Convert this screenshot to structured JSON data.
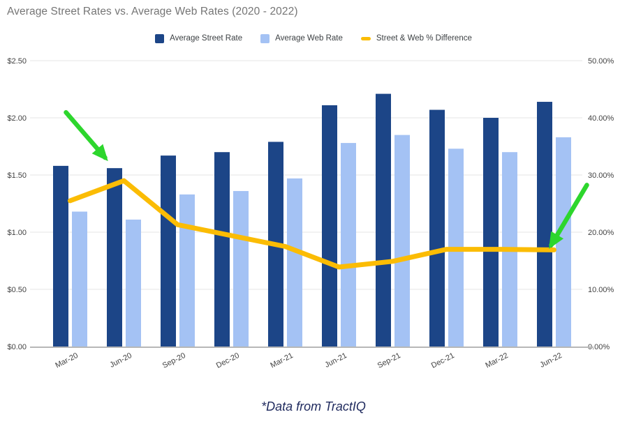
{
  "title": "Average Street Rates vs. Average Web Rates (2020 - 2022)",
  "footer": "*Data from TractIQ",
  "legend": {
    "items": [
      {
        "label": "Average Street Rate",
        "marker": "square",
        "color": "#1c4587"
      },
      {
        "label": "Average Web Rate",
        "marker": "square",
        "color": "#a4c2f4"
      },
      {
        "label": "Street & Web % Difference",
        "marker": "line",
        "color": "#fbbc04"
      }
    ]
  },
  "colors": {
    "street_bar": "#1c4587",
    "web_bar": "#a4c2f4",
    "pct_line": "#fbbc04",
    "arrow_green": "#2dd62d",
    "gridline": "#e6e6e6",
    "axis_line": "#b7b7b7",
    "title_text": "#757575",
    "axis_text": "#424242",
    "legend_text": "#3c4043",
    "footer_text": "#1f2a5e"
  },
  "chart_data": {
    "type": "bar",
    "subtype": "grouped-bars-with-line-overlay",
    "title": "Average Street Rates vs. Average Web Rates (2020 - 2022)",
    "categories": [
      "Mar-20",
      "Jun-20",
      "Sep-20",
      "Dec-20",
      "Mar-21",
      "Jun-21",
      "Sep-21",
      "Dec-21",
      "Mar-22",
      "Jun-22"
    ],
    "series": [
      {
        "name": "Average Street Rate",
        "type": "bar",
        "axis": "left",
        "color": "#1c4587",
        "values": [
          1.58,
          1.56,
          1.67,
          1.7,
          1.79,
          2.11,
          2.21,
          2.07,
          2.0,
          2.14
        ]
      },
      {
        "name": "Average Web Rate",
        "type": "bar",
        "axis": "left",
        "color": "#a4c2f4",
        "values": [
          1.18,
          1.11,
          1.33,
          1.36,
          1.47,
          1.78,
          1.85,
          1.73,
          1.7,
          1.83
        ]
      },
      {
        "name": "Street & Web % Difference",
        "type": "line",
        "axis": "right",
        "color": "#fbbc04",
        "values": [
          25.5,
          29.0,
          21.3,
          19.4,
          17.5,
          13.9,
          14.9,
          17.0,
          17.0,
          16.9
        ]
      }
    ],
    "left_axis": {
      "min": 0,
      "max": 2.5,
      "ticks": [
        "$0.00",
        "$0.50",
        "$1.00",
        "$1.50",
        "$2.00",
        "$2.50"
      ]
    },
    "right_axis": {
      "min": 0,
      "max": 50.0,
      "ticks": [
        "0.00%",
        "10.00%",
        "20.00%",
        "30.00%",
        "40.00%",
        "50.00%"
      ]
    },
    "grid": true,
    "legend_position": "top",
    "annotations": [
      {
        "type": "arrow",
        "color": "#2dd62d",
        "category": "Jun-20",
        "points_at": "street-bar-top"
      },
      {
        "type": "arrow",
        "color": "#2dd62d",
        "category": "Jun-22",
        "points_at": "line-point"
      }
    ]
  }
}
